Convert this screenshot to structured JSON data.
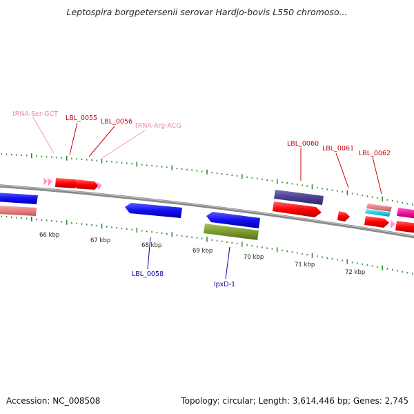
{
  "title": "Leptospira borgpetersenii serovar Hardjo-bovis L550 chromoso...",
  "colors": {
    "backbone": "#8c8c8c",
    "dots": "#2e8b2e",
    "cds_forward": "#ff0000",
    "cds_reverse": "#1010ee",
    "trna": "#ff88cc",
    "feature_label_red": "#cc0000",
    "feature_label_blue": "#0000aa",
    "feature_label_pink": "#ee88aa"
  },
  "scale_labels": [
    "66 kbp",
    "67 kbp",
    "68 kbp",
    "69 kbp",
    "70 kbp",
    "71 kbp",
    "72 kbp"
  ],
  "feature_labels": [
    {
      "id": "trna_ser",
      "text": "tRNA-Ser-GCT"
    },
    {
      "id": "lbl0055",
      "text": "LBL_0055"
    },
    {
      "id": "lbl0056",
      "text": "LBL_0056"
    },
    {
      "id": "trna_arg",
      "text": "tRNA-Arg-ACG"
    },
    {
      "id": "lbl0060",
      "text": "LBL_0060"
    },
    {
      "id": "lbl0061",
      "text": "LBL_0061"
    },
    {
      "id": "lbl0062",
      "text": "LBL_0062"
    },
    {
      "id": "lbl0058",
      "text": "LBL_0058"
    },
    {
      "id": "lpxd1",
      "text": "lpxD-1"
    }
  ],
  "footer": {
    "accession": "Accession: NC_008508",
    "summary": "Topology: circular; Length: 3,614,446 bp; Genes: 2,745"
  }
}
